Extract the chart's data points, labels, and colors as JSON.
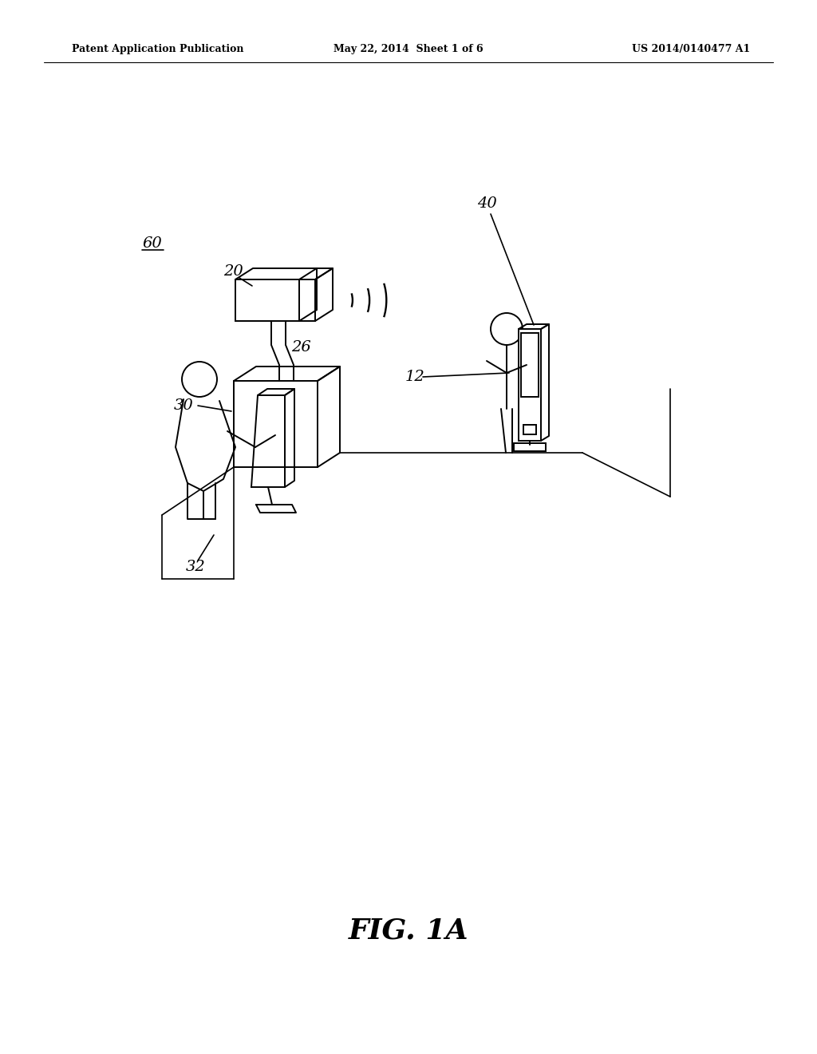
{
  "bg_color": "#ffffff",
  "header_left": "Patent Application Publication",
  "header_center": "May 22, 2014  Sheet 1 of 6",
  "header_right": "US 2014/0140477 A1",
  "figure_label": "FIG. 1A",
  "lw": 1.4,
  "lc": "#000000"
}
